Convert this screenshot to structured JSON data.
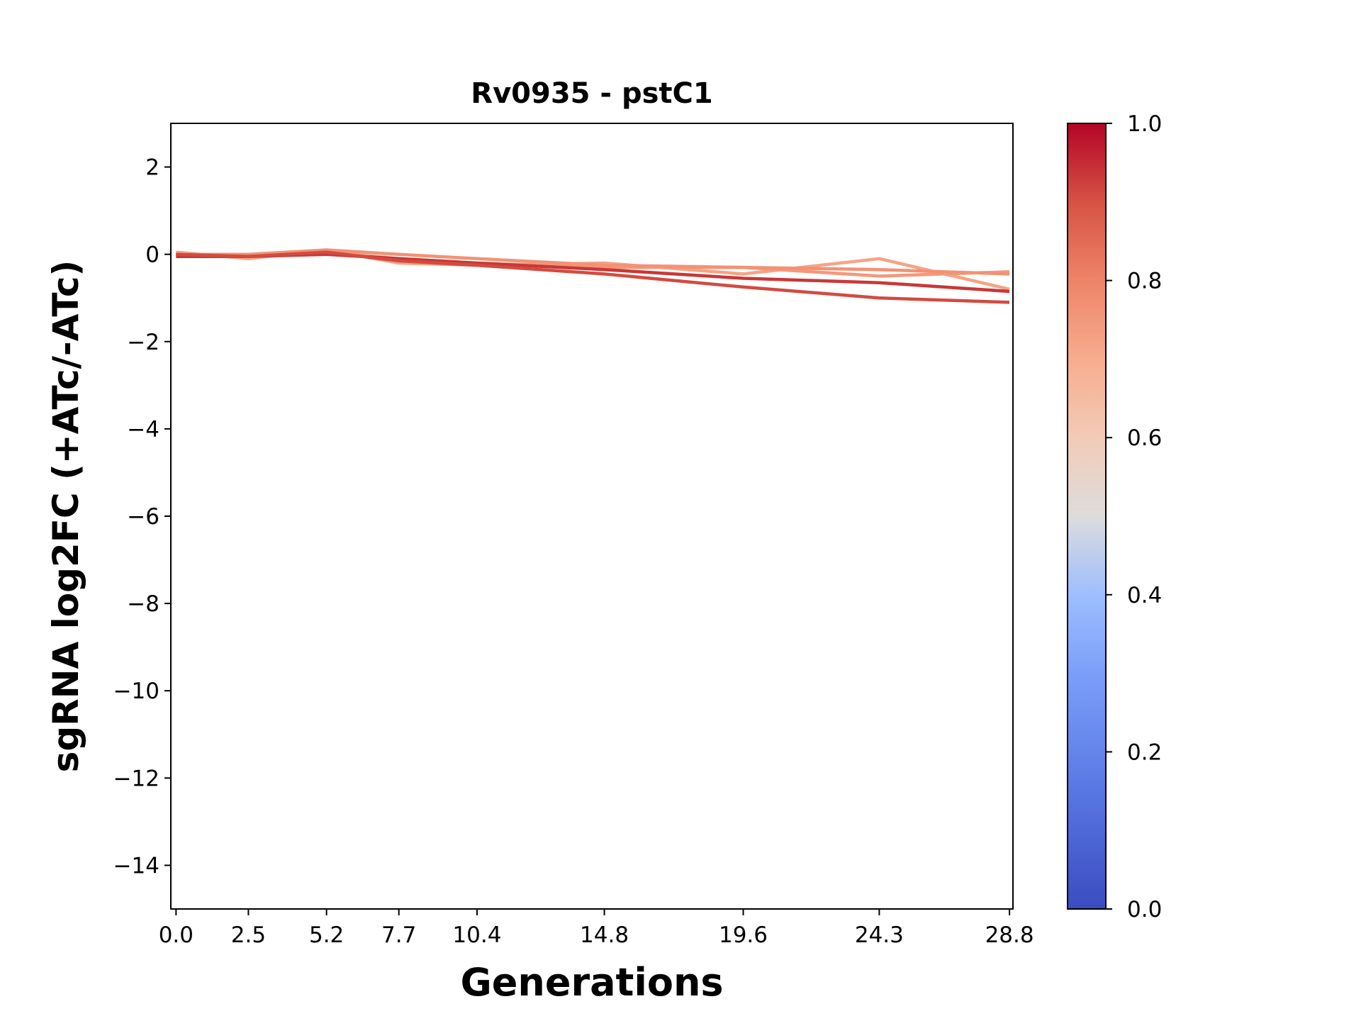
{
  "chart_data": {
    "type": "line",
    "title": "Rv0935 - pstC1",
    "xlabel": "Generations",
    "ylabel": "sgRNA log2FC (+ATc/-ATc)",
    "x": [
      0.0,
      2.5,
      5.2,
      7.7,
      10.4,
      14.8,
      19.6,
      24.3,
      28.8
    ],
    "xtick_labels": [
      "0.0",
      "2.5",
      "5.2",
      "7.7",
      "10.4",
      "14.8",
      "19.6",
      "24.3",
      "28.8"
    ],
    "xlim": [
      -0.18,
      28.92
    ],
    "ylim": [
      -15,
      3
    ],
    "yticks": [
      2,
      0,
      -2,
      -4,
      -6,
      -8,
      -10,
      -12,
      -14
    ],
    "ytick_labels": [
      "2",
      "0",
      "−2",
      "−4",
      "−6",
      "−8",
      "−10",
      "−12",
      "−14"
    ],
    "grid": false,
    "series": [
      {
        "color_value": 0.72,
        "color": "#f6a385",
        "values": [
          0.05,
          -0.1,
          0.1,
          -0.2,
          -0.25,
          -0.2,
          -0.45,
          -0.1,
          -0.8
        ]
      },
      {
        "color_value": 0.74,
        "color": "#f4987a",
        "values": [
          0.0,
          -0.05,
          0.05,
          -0.1,
          -0.2,
          -0.3,
          -0.3,
          -0.5,
          -0.4
        ]
      },
      {
        "color_value": 0.78,
        "color": "#f29274",
        "values": [
          0.0,
          0.0,
          0.1,
          0.0,
          -0.1,
          -0.25,
          -0.3,
          -0.35,
          -0.45
        ]
      },
      {
        "color_value": 0.93,
        "color": "#c83836",
        "values": [
          -0.05,
          -0.05,
          0.0,
          -0.1,
          -0.2,
          -0.35,
          -0.55,
          -0.65,
          -0.85
        ]
      },
      {
        "color_value": 0.9,
        "color": "#d24b40",
        "values": [
          0.0,
          -0.05,
          0.05,
          -0.15,
          -0.25,
          -0.45,
          -0.75,
          -1.0,
          -1.1
        ]
      }
    ],
    "colorbar": {
      "colormap": "coolwarm",
      "range": [
        0.0,
        1.0
      ],
      "tick_labels": [
        "0.0",
        "0.2",
        "0.4",
        "0.6",
        "0.8",
        "1.0"
      ],
      "ticks": [
        0.0,
        0.2,
        0.4,
        0.6,
        0.8,
        1.0
      ]
    }
  }
}
